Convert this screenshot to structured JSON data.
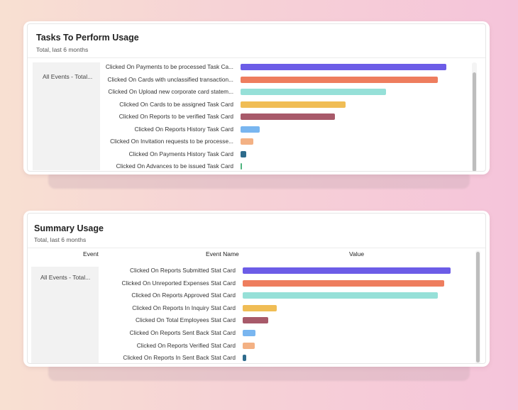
{
  "tasks_panel": {
    "title": "Tasks To Perform Usage",
    "subtitle": "Total, last 6 months",
    "group_label": "All Events - Total...",
    "rows": [
      {
        "label": "Clicked On Payments to be processed Task Ca...",
        "value": 96,
        "color": "#6c5ce7"
      },
      {
        "label": "Clicked On Cards with unclassified transaction...",
        "value": 92,
        "color": "#ee7d5e"
      },
      {
        "label": "Clicked On Upload new corporate card statem...",
        "value": 68,
        "color": "#96e0d8"
      },
      {
        "label": "Clicked On Cards to be assigned Task Card",
        "value": 49,
        "color": "#f0bd55"
      },
      {
        "label": "Clicked On Reports to be verified Task Card",
        "value": 44,
        "color": "#a85a6a"
      },
      {
        "label": "Clicked On Reports History Task Card",
        "value": 9,
        "color": "#79b6f0"
      },
      {
        "label": "Clicked On Invitation requests to be processe...",
        "value": 6,
        "color": "#f3b184"
      },
      {
        "label": "Clicked On Payments History Task Card",
        "value": 2.5,
        "color": "#2e6b8c"
      },
      {
        "label": "Clicked On Advances to be issued Task Card",
        "value": 0.7,
        "color": "#4fb47f"
      }
    ]
  },
  "summary_panel": {
    "title": "Summary Usage",
    "subtitle": "Total, last 6 months",
    "columns": {
      "event": "Event",
      "event_name": "Event Name",
      "value": "Value"
    },
    "group_label": "All Events - Total...",
    "rows": [
      {
        "label": "Clicked On Reports Submitted Stat Card",
        "value": 97,
        "color": "#6c5ce7"
      },
      {
        "label": "Clicked On Unreported Expenses Stat Card",
        "value": 94,
        "color": "#ee7d5e"
      },
      {
        "label": "Clicked On Reports Approved Stat Card",
        "value": 91,
        "color": "#96e0d8"
      },
      {
        "label": "Clicked On Reports In Inquiry Stat Card",
        "value": 16,
        "color": "#f0bd55"
      },
      {
        "label": "Clicked On Total Employees Stat Card",
        "value": 12,
        "color": "#a85a6a"
      },
      {
        "label": "Clicked On Reports Sent Back Stat Card",
        "value": 6,
        "color": "#79b6f0"
      },
      {
        "label": "Clicked On Reports Verified Stat Card",
        "value": 5.5,
        "color": "#f3b184"
      },
      {
        "label": "Clicked On Reports In Sent Back Stat Card",
        "value": 1.5,
        "color": "#2e6b8c"
      }
    ]
  }
}
